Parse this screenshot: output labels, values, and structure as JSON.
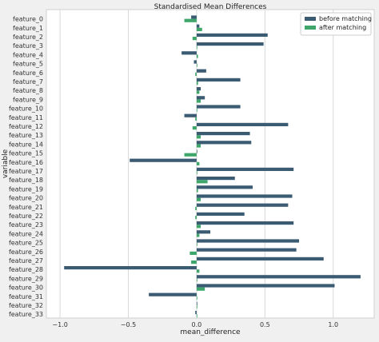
{
  "chart_data": {
    "type": "bar",
    "orientation": "horizontal",
    "title": "Standardised Mean Differences",
    "xlabel": "mean_difference",
    "ylabel": "variable",
    "xlim": [
      -1.1,
      1.3
    ],
    "xticks": [
      -1.0,
      -0.5,
      0.0,
      0.5,
      1.0
    ],
    "xtick_labels": [
      "−1.0",
      "−0.5",
      "0.0",
      "0.5",
      "1.0"
    ],
    "grid": "vertical",
    "legend": "top-right",
    "categories": [
      "feature_0",
      "feature_1",
      "feature_2",
      "feature_3",
      "feature_4",
      "feature_5",
      "feature_6",
      "feature_7",
      "feature_8",
      "feature_9",
      "feature_10",
      "feature_11",
      "feature_12",
      "feature_13",
      "feature_14",
      "feature_15",
      "feature_16",
      "feature_17",
      "feature_18",
      "feature_19",
      "feature_20",
      "feature_21",
      "feature_22",
      "feature_23",
      "feature_24",
      "feature_25",
      "feature_26",
      "feature_27",
      "feature_28",
      "feature_29",
      "feature_30",
      "feature_31",
      "feature_32",
      "feature_33"
    ],
    "series": [
      {
        "name": "before matching",
        "color": "#3b5b73",
        "values": [
          -0.04,
          0.02,
          0.52,
          0.49,
          -0.11,
          -0.02,
          0.07,
          0.32,
          0.03,
          0.06,
          0.32,
          -0.09,
          0.67,
          0.39,
          0.4,
          0.0,
          -0.49,
          0.71,
          0.28,
          0.41,
          0.7,
          0.67,
          0.35,
          0.71,
          0.1,
          0.75,
          0.73,
          0.93,
          -0.97,
          1.2,
          1.01,
          -0.35,
          0.0,
          -0.01
        ]
      },
      {
        "name": "after matching",
        "color": "#3fa66b",
        "values": [
          -0.09,
          0.04,
          -0.03,
          0.0,
          0.01,
          0.0,
          -0.01,
          0.01,
          0.02,
          0.03,
          0.0,
          -0.01,
          -0.03,
          0.03,
          0.03,
          -0.09,
          0.02,
          0.0,
          0.08,
          0.01,
          0.03,
          -0.01,
          -0.01,
          0.03,
          0.02,
          0.0,
          -0.05,
          -0.04,
          0.02,
          0.0,
          0.06,
          0.0,
          0.0,
          0.0
        ]
      }
    ]
  }
}
